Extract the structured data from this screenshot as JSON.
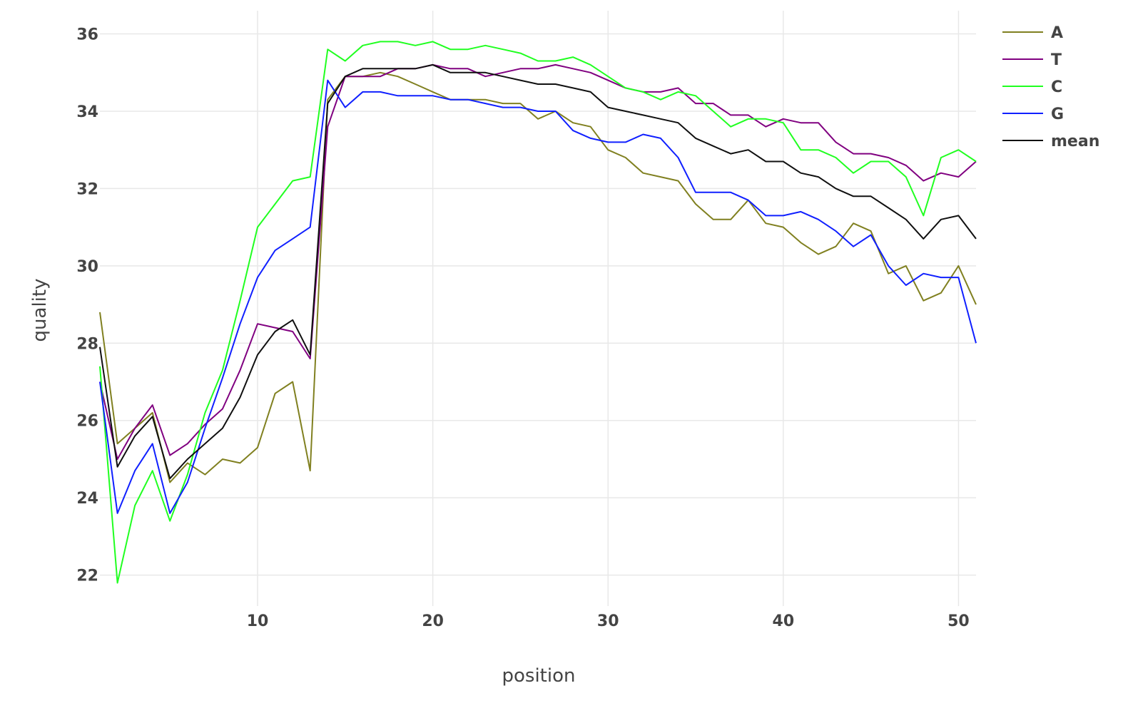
{
  "chart_data": {
    "type": "line",
    "title": "",
    "xlabel": "position",
    "ylabel": "quality",
    "xlim": [
      1,
      51
    ],
    "ylim": [
      21.2,
      36.6
    ],
    "x_ticks": [
      10,
      20,
      30,
      40,
      50
    ],
    "y_ticks": [
      22,
      24,
      26,
      28,
      30,
      32,
      34,
      36
    ],
    "grid": true,
    "legend_position": "top-right",
    "x": [
      1,
      2,
      3,
      4,
      5,
      6,
      7,
      8,
      9,
      10,
      11,
      12,
      13,
      14,
      15,
      16,
      17,
      18,
      19,
      20,
      21,
      22,
      23,
      24,
      25,
      26,
      27,
      28,
      29,
      30,
      31,
      32,
      33,
      34,
      35,
      36,
      37,
      38,
      39,
      40,
      41,
      42,
      43,
      44,
      45,
      46,
      47,
      48,
      49,
      50,
      51
    ],
    "series": [
      {
        "name": "A",
        "color": "#808020",
        "values": [
          28.8,
          25.4,
          25.8,
          26.2,
          24.4,
          24.9,
          24.6,
          25.0,
          24.9,
          25.3,
          26.7,
          27.0,
          24.7,
          34.3,
          34.9,
          34.9,
          35.0,
          34.9,
          34.7,
          34.5,
          34.3,
          34.3,
          34.3,
          34.2,
          34.2,
          33.8,
          34.0,
          33.7,
          33.6,
          33.0,
          32.8,
          32.4,
          32.3,
          32.2,
          31.6,
          31.2,
          31.2,
          31.7,
          31.1,
          31.0,
          30.6,
          30.3,
          30.5,
          31.1,
          30.9,
          29.8,
          30.0,
          29.1,
          29.3,
          30.0,
          29.0
        ]
      },
      {
        "name": "T",
        "color": "#800080",
        "values": [
          27.0,
          25.0,
          25.8,
          26.4,
          25.1,
          25.4,
          25.9,
          26.3,
          27.3,
          28.5,
          28.4,
          28.3,
          27.6,
          33.6,
          34.9,
          34.9,
          34.9,
          35.1,
          35.1,
          35.2,
          35.1,
          35.1,
          34.9,
          35.0,
          35.1,
          35.1,
          35.2,
          35.1,
          35.0,
          34.8,
          34.6,
          34.5,
          34.5,
          34.6,
          34.2,
          34.2,
          33.9,
          33.9,
          33.6,
          33.8,
          33.7,
          33.7,
          33.2,
          32.9,
          32.9,
          32.8,
          32.6,
          32.2,
          32.4,
          32.3,
          32.7
        ]
      },
      {
        "name": "C",
        "color": "#20FF20",
        "values": [
          27.4,
          21.8,
          23.8,
          24.7,
          23.4,
          24.6,
          26.2,
          27.3,
          29.1,
          31.0,
          31.6,
          32.2,
          32.3,
          35.6,
          35.3,
          35.7,
          35.8,
          35.8,
          35.7,
          35.8,
          35.6,
          35.6,
          35.7,
          35.6,
          35.5,
          35.3,
          35.3,
          35.4,
          35.2,
          34.9,
          34.6,
          34.5,
          34.3,
          34.5,
          34.4,
          34.0,
          33.6,
          33.8,
          33.8,
          33.7,
          33.0,
          33.0,
          32.8,
          32.4,
          32.7,
          32.7,
          32.3,
          31.3,
          32.8,
          33.0,
          32.7
        ]
      },
      {
        "name": "G",
        "color": "#1020FF",
        "values": [
          27.0,
          23.6,
          24.7,
          25.4,
          23.6,
          24.4,
          25.8,
          27.1,
          28.5,
          29.7,
          30.4,
          30.7,
          31.0,
          34.8,
          34.1,
          34.5,
          34.5,
          34.4,
          34.4,
          34.4,
          34.3,
          34.3,
          34.2,
          34.1,
          34.1,
          34.0,
          34.0,
          33.5,
          33.3,
          33.2,
          33.2,
          33.4,
          33.3,
          32.8,
          31.9,
          31.9,
          31.9,
          31.7,
          31.3,
          31.3,
          31.4,
          31.2,
          30.9,
          30.5,
          30.8,
          30.0,
          29.5,
          29.8,
          29.7,
          29.7,
          28.0
        ]
      },
      {
        "name": "mean",
        "color": "#101010",
        "values": [
          27.9,
          24.8,
          25.6,
          26.1,
          24.5,
          25.0,
          25.4,
          25.8,
          26.6,
          27.7,
          28.3,
          28.6,
          27.7,
          34.2,
          34.9,
          35.1,
          35.1,
          35.1,
          35.1,
          35.2,
          35.0,
          35.0,
          35.0,
          34.9,
          34.8,
          34.7,
          34.7,
          34.6,
          34.5,
          34.1,
          34.0,
          33.9,
          33.8,
          33.7,
          33.3,
          33.1,
          32.9,
          33.0,
          32.7,
          32.7,
          32.4,
          32.3,
          32.0,
          31.8,
          31.8,
          31.5,
          31.2,
          30.7,
          31.2,
          31.3,
          30.7
        ]
      }
    ]
  }
}
